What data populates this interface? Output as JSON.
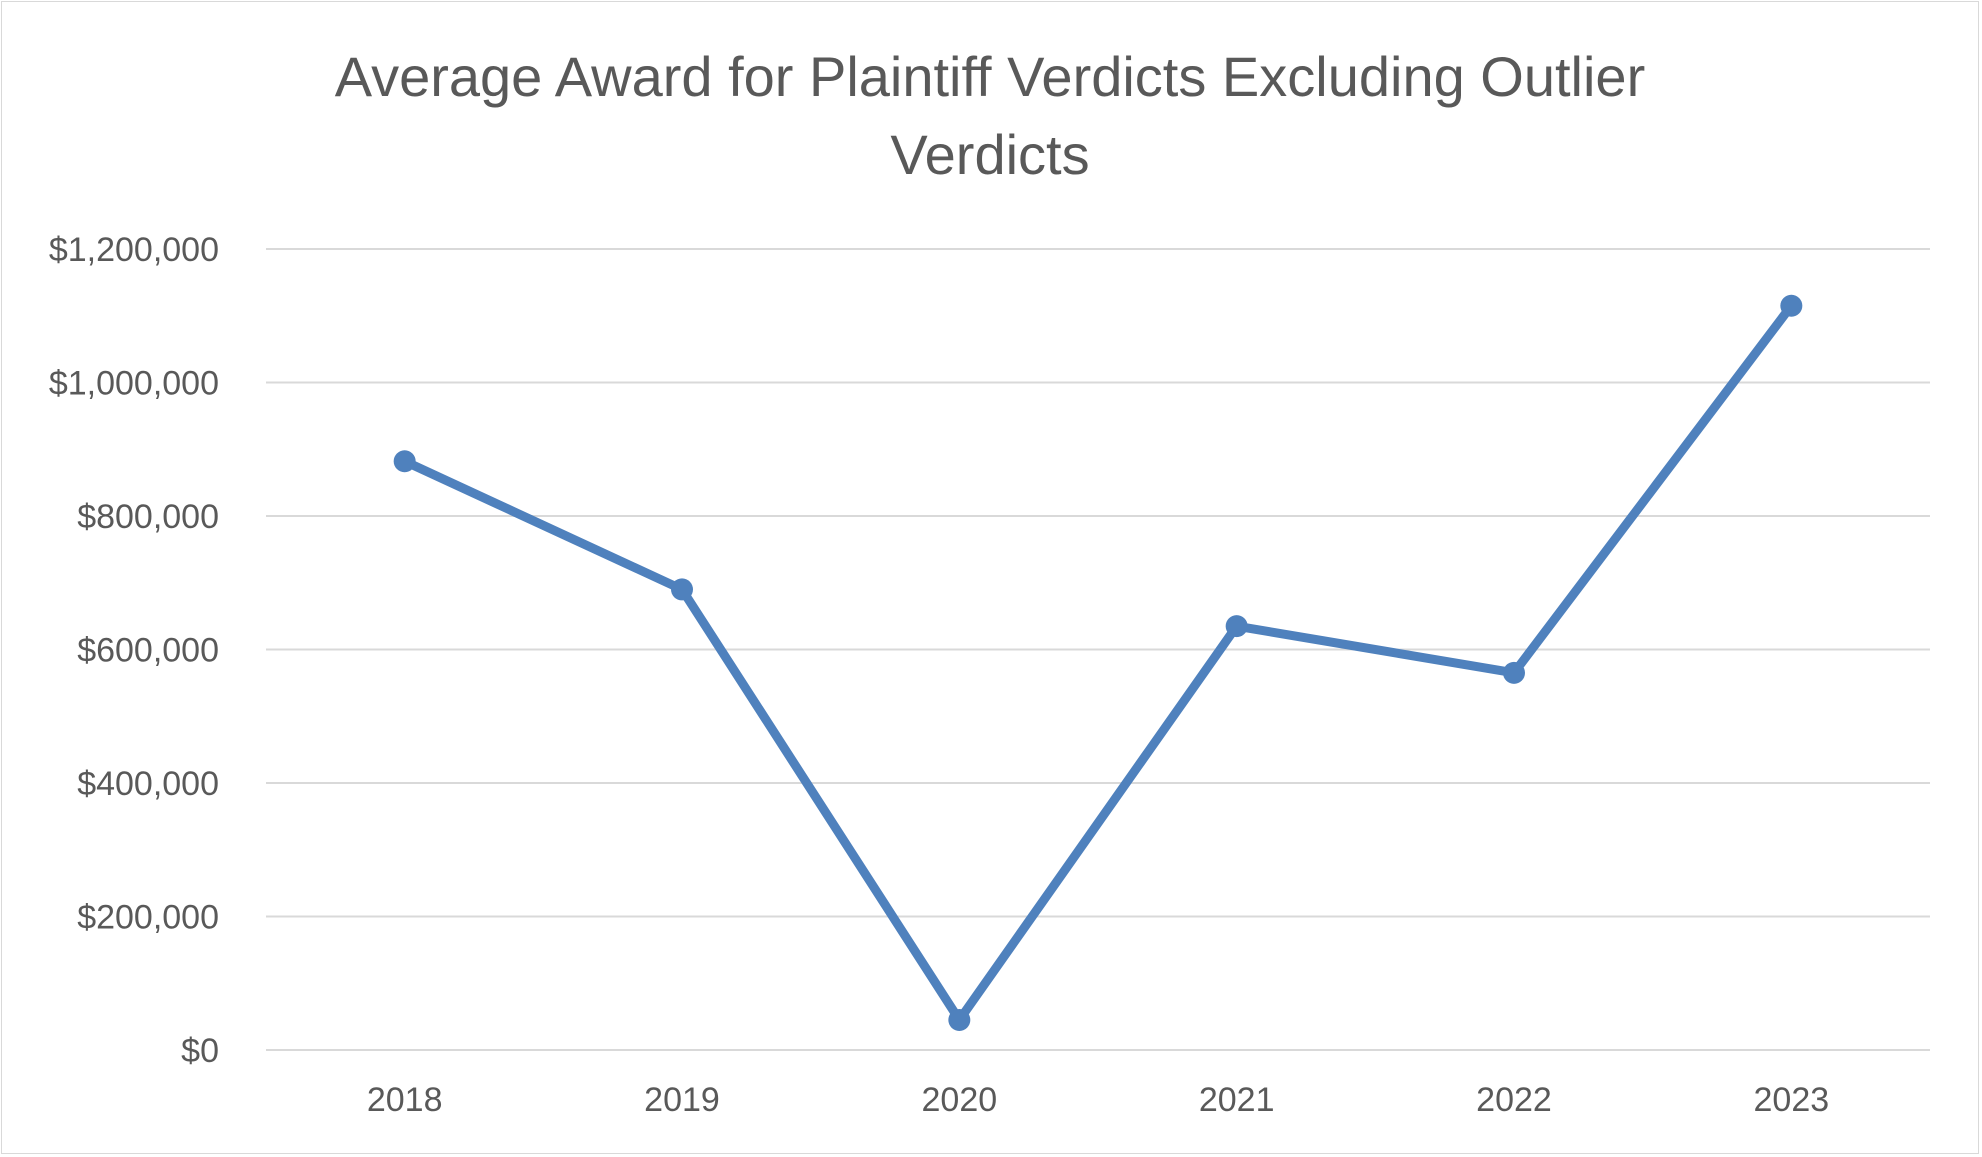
{
  "colors": {
    "series": "#4f81bd",
    "text": "#595959",
    "grid": "#d9d9d9",
    "background": "#ffffff"
  },
  "chart_data": {
    "type": "line",
    "title_lines": [
      "Average Award for Plaintiff Verdicts Excluding Outlier",
      "Verdicts"
    ],
    "xlabel": "",
    "ylabel": "",
    "categories": [
      "2018",
      "2019",
      "2020",
      "2021",
      "2022",
      "2023"
    ],
    "series": [
      {
        "values": [
          882000,
          690000,
          45000,
          635000,
          565000,
          1115000
        ]
      }
    ],
    "ylim": [
      0,
      1200000
    ],
    "y_ticks": [
      0,
      200000,
      400000,
      600000,
      800000,
      1000000,
      1200000
    ],
    "y_tick_labels": [
      "$0",
      "$200,000",
      "$400,000",
      "$600,000",
      "$800,000",
      "$1,000,000",
      "$1,200,000"
    ],
    "grid": true,
    "legend": "none",
    "markers": true
  }
}
